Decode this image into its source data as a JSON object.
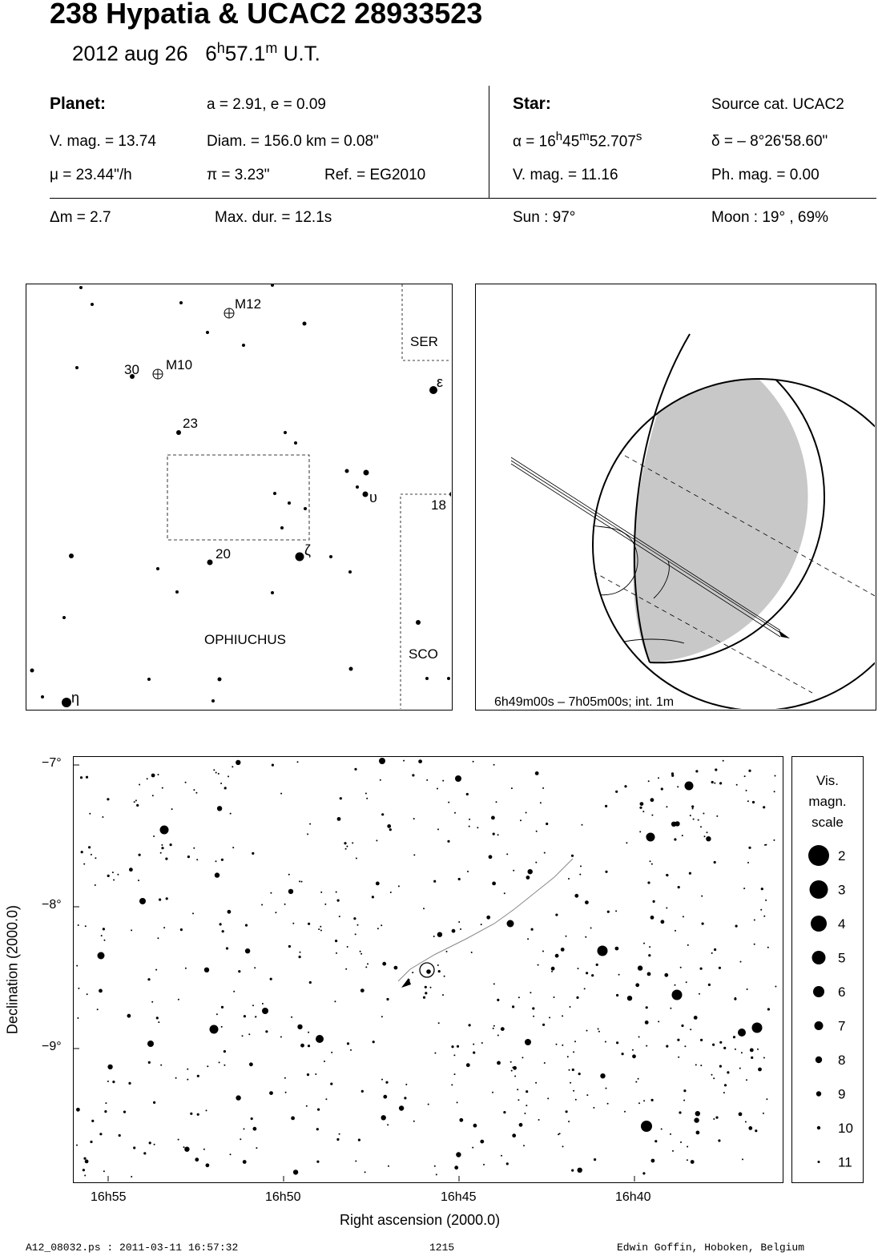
{
  "header": {
    "title": "238 Hypatia  &  UCAC2 28933523",
    "date": "2012 aug 26",
    "time_h": "6",
    "time_h_unit": "h",
    "time_m": "57.1",
    "time_m_unit": "m",
    "time_suffix": "U.T."
  },
  "planet": {
    "heading": "Planet:",
    "orbit": "a = 2.91, e = 0.09",
    "vmag": "V. mag. = 13.74",
    "diam": "Diam. = 156.0 km = 0.08\"",
    "mu": "μ =  23.44\"/h",
    "pi": "π =  3.23\"",
    "ref": "Ref. = EG2010"
  },
  "star": {
    "heading": "Star:",
    "source": "Source cat.  UCAC2",
    "alpha_prefix": "α = 16",
    "alpha_h": "h",
    "alpha_min": "45",
    "alpha_m": "m",
    "alpha_sec": "52.707",
    "alpha_s": "s",
    "delta": "δ = – 8°26'58.60\"",
    "vmag": "V. mag. = 11.16",
    "phmag": "Ph. mag. =  0.00"
  },
  "event": {
    "dm": "Δm = 2.7",
    "maxdur": "Max. dur. = 12.1s",
    "sun": "Sun :  97°",
    "moon": "Moon :  19° , 69%"
  },
  "finder": {
    "constellation": "OPHIUCHUS",
    "ser": "SER",
    "sco": "SCO",
    "labels": {
      "m12": "M12",
      "m10": "M10",
      "n30": "30",
      "n23": "23",
      "n20": "20",
      "n18": "18",
      "eps": "ε",
      "ups": "υ",
      "zeta": "ζ",
      "eta": "η"
    }
  },
  "globe": {
    "caption": "6h49m00s –  7h05m00s; int.  1m"
  },
  "chart": {
    "xlabel": "Right ascension (2000.0)",
    "ylabel": "Declination (2000.0)",
    "xticks": [
      "16h55",
      "16h50",
      "16h45",
      "16h40"
    ],
    "yticks": [
      "−7°",
      "−8°",
      "−9°"
    ]
  },
  "scale": {
    "title": [
      "Vis.",
      "magn.",
      "scale"
    ],
    "mags": [
      "2",
      "3",
      "4",
      "5",
      "6",
      "7",
      "8",
      "9",
      "10",
      "11"
    ]
  },
  "footer": {
    "file": "A12_08032.ps : 2011-03-11 16:57:32",
    "number": "1215",
    "author": "Edwin Goffin, Hoboken, Belgium"
  }
}
